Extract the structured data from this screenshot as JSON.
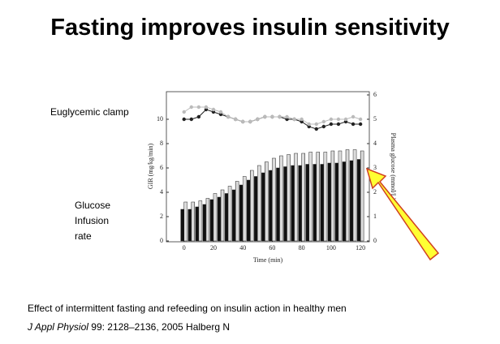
{
  "slide": {
    "title": "Fasting improves insulin sensitivity",
    "labels": [
      "Euglycemic clamp",
      "Glucose",
      "Infusion",
      "rate"
    ],
    "caption": "Effect of intermittent fasting and refeeding on insulin action in healthy men",
    "citation": {
      "journal": "J Appl Physiol",
      "details": " 99: 2128–2136, 2005 Halberg N"
    }
  },
  "chart_data": {
    "type": "bar",
    "x_label": "Time (min)",
    "y_label": "GIR (mg/kg/min)",
    "y2_label": "Plasma glucose (mmol/L)",
    "x": [
      0,
      5,
      10,
      15,
      20,
      25,
      30,
      35,
      40,
      45,
      50,
      55,
      60,
      65,
      70,
      75,
      80,
      85,
      90,
      95,
      100,
      105,
      110,
      115,
      120
    ],
    "series": [
      {
        "type": "bar",
        "color": "#111111",
        "values": [
          2.6,
          2.6,
          2.8,
          3.0,
          3.4,
          3.6,
          3.9,
          4.2,
          4.6,
          5.0,
          5.3,
          5.6,
          5.8,
          6.0,
          6.1,
          6.2,
          6.2,
          6.3,
          6.3,
          6.3,
          6.4,
          6.4,
          6.5,
          6.6,
          6.7
        ]
      },
      {
        "type": "bar",
        "color": "#ffffff",
        "values": [
          3.2,
          3.2,
          3.3,
          3.5,
          3.9,
          4.2,
          4.5,
          4.9,
          5.3,
          5.8,
          6.2,
          6.5,
          6.8,
          7.0,
          7.1,
          7.2,
          7.2,
          7.3,
          7.3,
          7.3,
          7.4,
          7.4,
          7.5,
          7.5,
          7.4
        ]
      },
      {
        "type": "line",
        "axis": "y2",
        "color": "#222222",
        "values": [
          5.0,
          5.0,
          5.1,
          5.4,
          5.3,
          5.2,
          5.1,
          5.0,
          4.9,
          4.9,
          5.0,
          5.1,
          5.1,
          5.1,
          5.0,
          5.0,
          4.9,
          4.7,
          4.6,
          4.7,
          4.8,
          4.8,
          4.9,
          4.8,
          4.8
        ]
      },
      {
        "type": "line",
        "axis": "y2",
        "color": "#bbbbbb",
        "values": [
          5.3,
          5.5,
          5.5,
          5.5,
          5.4,
          5.3,
          5.1,
          5.0,
          4.9,
          4.9,
          5.0,
          5.1,
          5.1,
          5.1,
          5.1,
          5.0,
          5.0,
          4.8,
          4.8,
          4.9,
          5.0,
          5.0,
          5.0,
          5.1,
          5.0
        ]
      }
    ],
    "xlim": [
      -12,
      126
    ],
    "xticks": [
      0,
      20,
      40,
      60,
      80,
      100,
      120
    ],
    "ylim": [
      0,
      12
    ],
    "yticks": [
      0,
      2,
      4,
      6,
      8,
      10
    ],
    "y2lim": [
      0,
      6
    ],
    "y2ticks": [
      0,
      1,
      2,
      3,
      4,
      5,
      6
    ]
  }
}
